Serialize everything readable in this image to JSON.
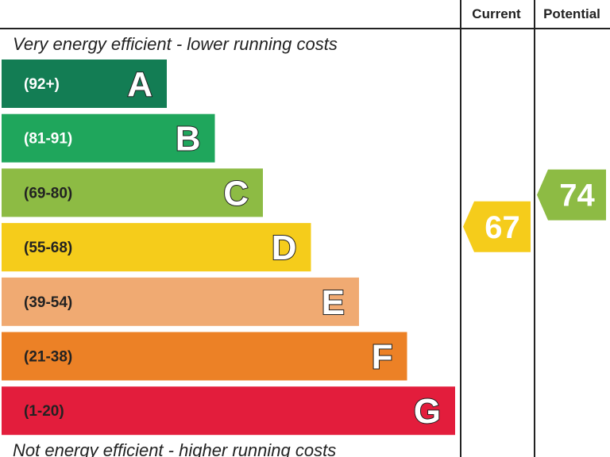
{
  "chart_data": {
    "type": "bar",
    "header": {
      "current_label": "Current",
      "potential_label": "Potential"
    },
    "top_caption": "Very energy efficient - lower running costs",
    "bottom_caption": "Not energy efficient - higher running costs",
    "bands": [
      {
        "letter": "A",
        "range": "(92+)",
        "min": 92,
        "max": 100,
        "color": "#137d54",
        "range_text_color": "#ffffff"
      },
      {
        "letter": "B",
        "range": "(81-91)",
        "min": 81,
        "max": 91,
        "color": "#1fa65c",
        "range_text_color": "#ffffff"
      },
      {
        "letter": "C",
        "range": "(69-80)",
        "min": 69,
        "max": 80,
        "color": "#8dbb44",
        "range_text_color": "#222222"
      },
      {
        "letter": "D",
        "range": "(55-68)",
        "min": 55,
        "max": 68,
        "color": "#f5cc1b",
        "range_text_color": "#222222"
      },
      {
        "letter": "E",
        "range": "(39-54)",
        "min": 39,
        "max": 54,
        "color": "#f0aa72",
        "range_text_color": "#222222"
      },
      {
        "letter": "F",
        "range": "(21-38)",
        "min": 21,
        "max": 38,
        "color": "#ec8126",
        "range_text_color": "#222222"
      },
      {
        "letter": "G",
        "range": "(1-20)",
        "min": 1,
        "max": 20,
        "color": "#e31d3c",
        "range_text_color": "#222222"
      }
    ],
    "current": {
      "value": 67,
      "band": "D",
      "color": "#f5cc1b"
    },
    "potential": {
      "value": 74,
      "band": "C",
      "color": "#8dbb44"
    }
  }
}
